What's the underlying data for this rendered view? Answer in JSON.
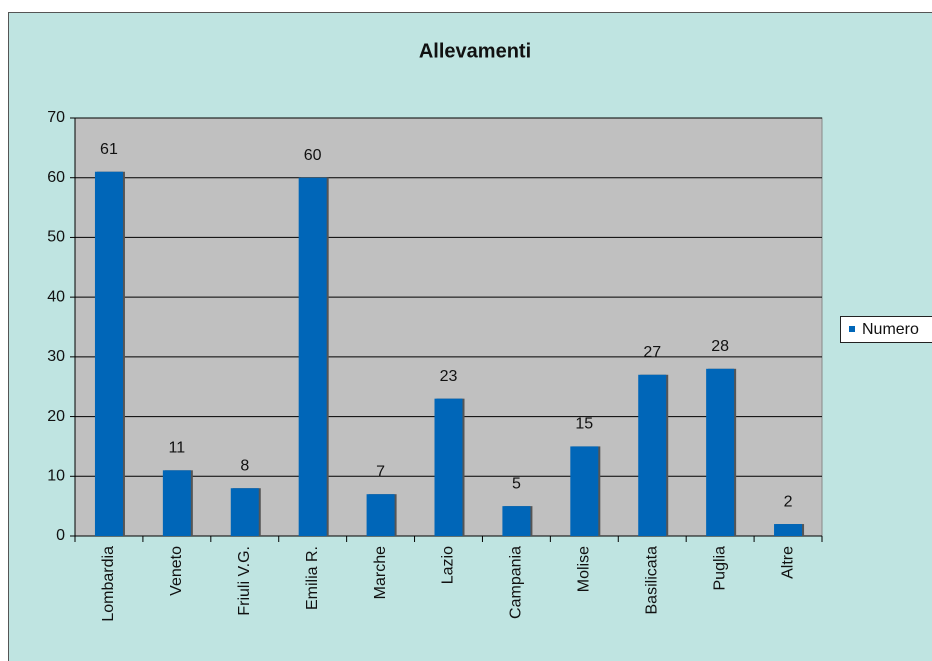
{
  "chart_data": {
    "type": "bar",
    "title": "Allevamenti",
    "categories": [
      "Lombardia",
      "Veneto",
      "Friuli V.G.",
      "Emilia R.",
      "Marche",
      "Lazio",
      "Campania",
      "Molise",
      "Basilicata",
      "Puglia",
      "Altre"
    ],
    "series": [
      {
        "name": "Numero",
        "color": "#0066b8",
        "values": [
          61,
          11,
          8,
          60,
          7,
          23,
          5,
          15,
          27,
          28,
          2
        ]
      }
    ],
    "ylim": [
      0,
      70
    ],
    "yticks": [
      0,
      10,
      20,
      30,
      40,
      50,
      60,
      70
    ],
    "grid": true,
    "legend": "right"
  }
}
